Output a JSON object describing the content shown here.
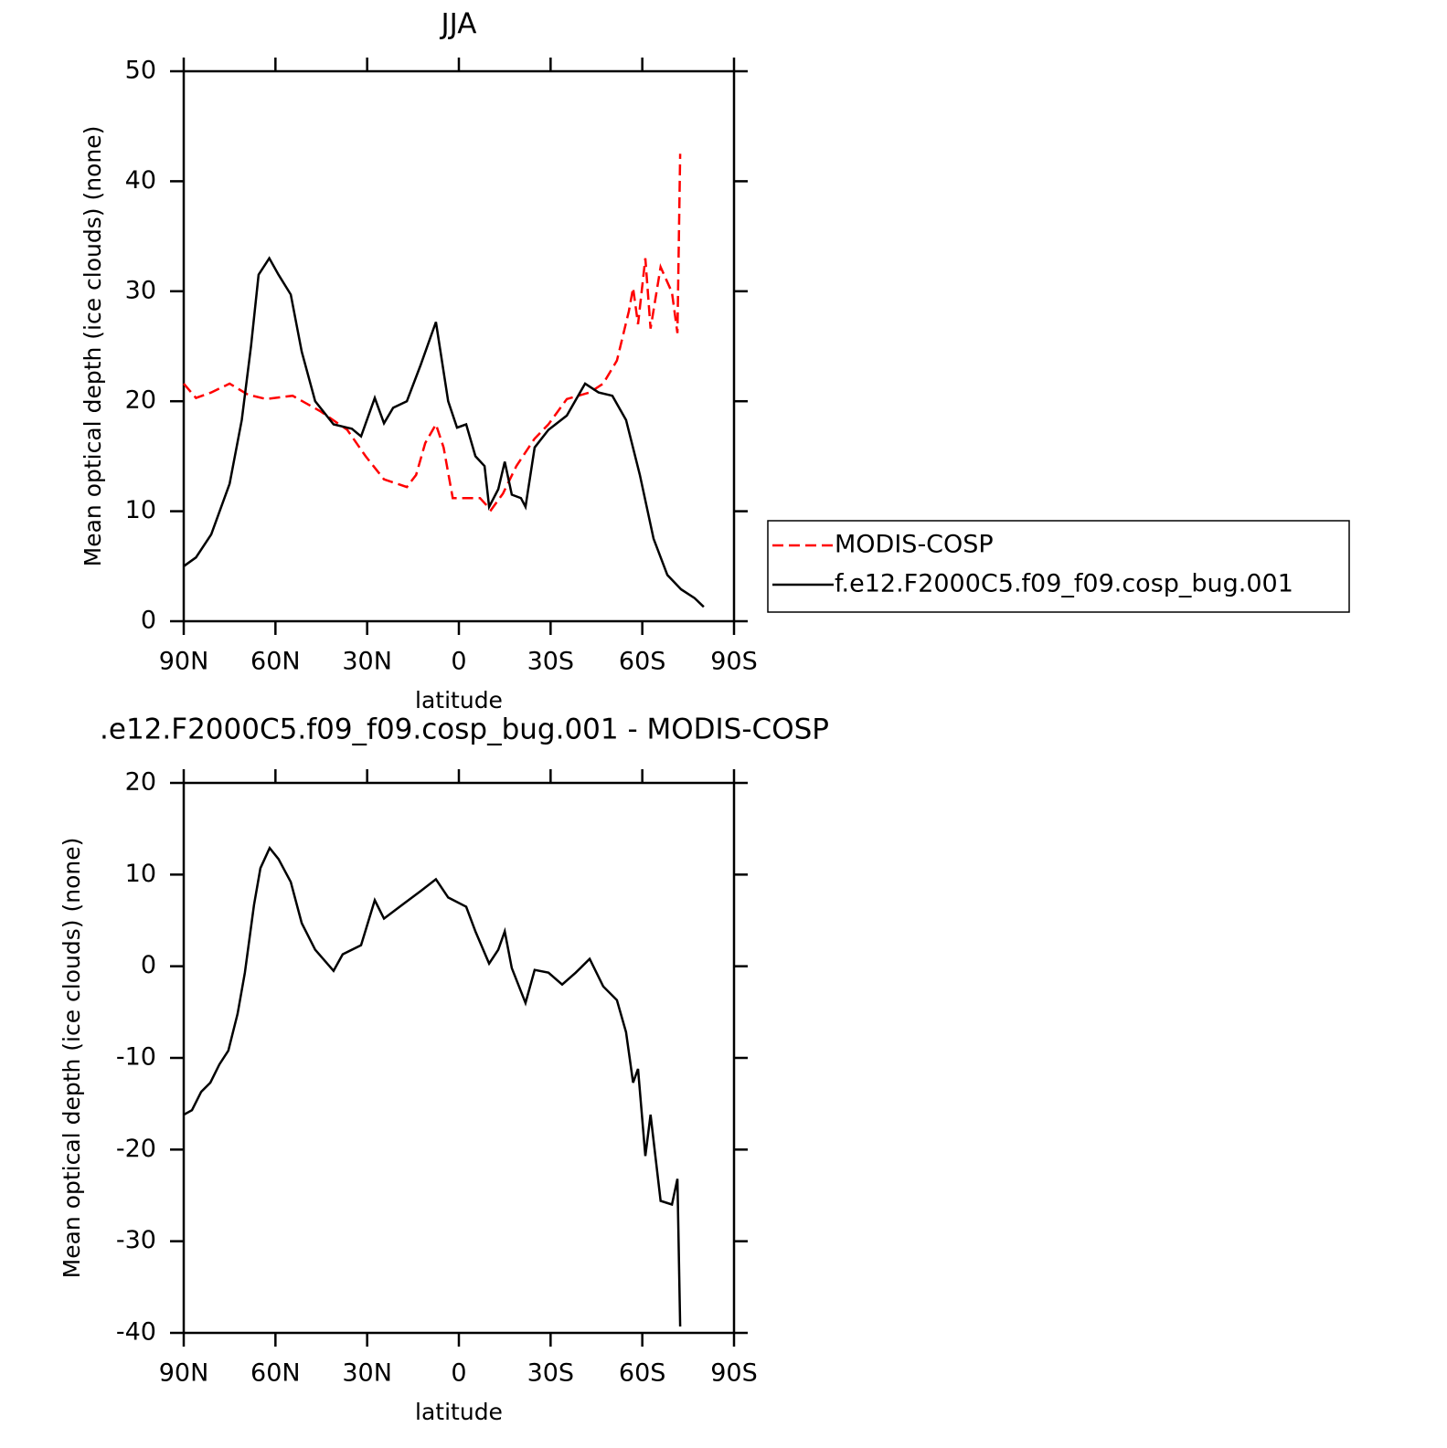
{
  "chart_data": [
    {
      "type": "line",
      "title": "JJA",
      "xlabel": "latitude",
      "ylabel": "Mean optical depth (ice clouds) (none)",
      "xlim": [
        90,
        -90
      ],
      "xticks": [
        {
          "value": 90,
          "label": "90N"
        },
        {
          "value": 60,
          "label": "60N"
        },
        {
          "value": 30,
          "label": "30N"
        },
        0,
        {
          "value": -30,
          "label": "30S"
        },
        {
          "value": -60,
          "label": "60S"
        },
        {
          "value": -90,
          "label": "90S"
        }
      ],
      "ylim": [
        0,
        50
      ],
      "yticks": [
        0,
        10,
        20,
        30,
        40,
        50
      ],
      "legend": "outside-right",
      "series": [
        {
          "name": "MODIS-COSP",
          "color": "#ff0000",
          "dashed": true,
          "x": [
            90,
            86,
            81,
            75,
            69,
            63,
            54.4,
            45.4,
            36.5,
            30.5,
            24.5,
            17,
            14,
            11,
            7.5,
            5,
            2,
            -2.4,
            -6.9,
            -10.5,
            -14.4,
            -18.8,
            -24.8,
            -29.3,
            -35.3,
            -42.8,
            -47.2,
            -51.7,
            -55.6,
            -57,
            -58.6,
            -61,
            -62.7,
            -66,
            -69.7,
            -71.5,
            -72.4
          ],
          "values": [
            21.6,
            20.3,
            20.8,
            21.6,
            20.6,
            20.2,
            20.5,
            19.1,
            17.4,
            15,
            12.9,
            12.2,
            13.3,
            16.2,
            17.9,
            15.8,
            11.2,
            11.2,
            11.2,
            10.1,
            11.6,
            14.1,
            16.6,
            17.9,
            20.2,
            20.8,
            21.6,
            23.7,
            28.2,
            30.3,
            27,
            33,
            26.6,
            32.2,
            29.9,
            26.2,
            42.5
          ]
        },
        {
          "name": "f.e12.F2000C5.f09_f09.cosp_bug.001",
          "color": "#000000",
          "dashed": false,
          "x": [
            90,
            86,
            81,
            75,
            71,
            68,
            65.5,
            62,
            59,
            55,
            51.4,
            47,
            41,
            35,
            32,
            27.5,
            24.5,
            21.5,
            17,
            12.5,
            7.5,
            3.5,
            0.6,
            -2.4,
            -5.4,
            -8.4,
            -9.9,
            -12.9,
            -15,
            -17.3,
            -20.3,
            -21.8,
            -24.8,
            -29.3,
            -35.3,
            -41.3,
            -45.7,
            -50.2,
            -54.7,
            -59.2,
            -63.7,
            -68.2,
            -72.7,
            -77.1,
            -80.1
          ],
          "values": [
            5,
            5.8,
            7.9,
            12.5,
            18.3,
            25,
            31.5,
            33,
            31.5,
            29.7,
            24.5,
            20,
            17.9,
            17.5,
            16.8,
            20.3,
            18,
            19.4,
            20,
            23.3,
            27.2,
            20,
            17.6,
            17.9,
            15,
            14.1,
            10.4,
            12,
            14.5,
            11.5,
            11.2,
            10.4,
            15.8,
            17.4,
            18.7,
            21.6,
            20.8,
            20.5,
            18.3,
            13.3,
            7.5,
            4.2,
            2.9,
            2.1,
            1.3
          ]
        }
      ]
    },
    {
      "type": "line",
      "title": ".e12.F2000C5.f09_f09.cosp_bug.001 - MODIS-COSP",
      "xlabel": "latitude",
      "ylabel": "Mean optical depth (ice clouds) (none)",
      "xlim": [
        90,
        -90
      ],
      "xticks": [
        {
          "value": 90,
          "label": "90N"
        },
        {
          "value": 60,
          "label": "60N"
        },
        {
          "value": 30,
          "label": "30N"
        },
        0,
        {
          "value": -30,
          "label": "30S"
        },
        {
          "value": -60,
          "label": "60S"
        },
        {
          "value": -90,
          "label": "90S"
        }
      ],
      "ylim": [
        -40,
        20
      ],
      "yticks": [
        -40,
        -30,
        -20,
        -10,
        0,
        10,
        20
      ],
      "series": [
        {
          "color": "#000000",
          "dashed": false,
          "x": [
            90,
            87.3,
            84.3,
            81.3,
            78.3,
            75.4,
            72.4,
            70,
            67,
            64.9,
            61.9,
            59,
            55,
            51.4,
            47,
            41,
            38,
            32,
            27.5,
            24.5,
            18.5,
            12.5,
            7.5,
            3.5,
            -2.4,
            -5.4,
            -9.9,
            -12.9,
            -15,
            -17.3,
            -21.8,
            -24.8,
            -29.3,
            -33.8,
            -38.2,
            -42.8,
            -47.2,
            -51.7,
            -54.7,
            -57,
            -58.6,
            -61,
            -62.7,
            -66,
            -69.7,
            -71.5,
            -72.4
          ],
          "values": [
            -16.2,
            -15.7,
            -13.7,
            -12.7,
            -10.7,
            -9.2,
            -5.2,
            -0.7,
            6.7,
            10.7,
            12.9,
            11.7,
            9.2,
            4.7,
            1.8,
            -0.5,
            1.3,
            2.3,
            7.2,
            5.2,
            6.7,
            8.2,
            9.5,
            7.5,
            6.5,
            3.8,
            0.3,
            1.8,
            3.8,
            -0.2,
            -4,
            -0.4,
            -0.7,
            -2,
            -0.7,
            0.8,
            -2.2,
            -3.7,
            -7.2,
            -12.7,
            -11.2,
            -20.7,
            -16.2,
            -25.6,
            -26,
            -23.2,
            -39.3
          ]
        }
      ]
    }
  ]
}
